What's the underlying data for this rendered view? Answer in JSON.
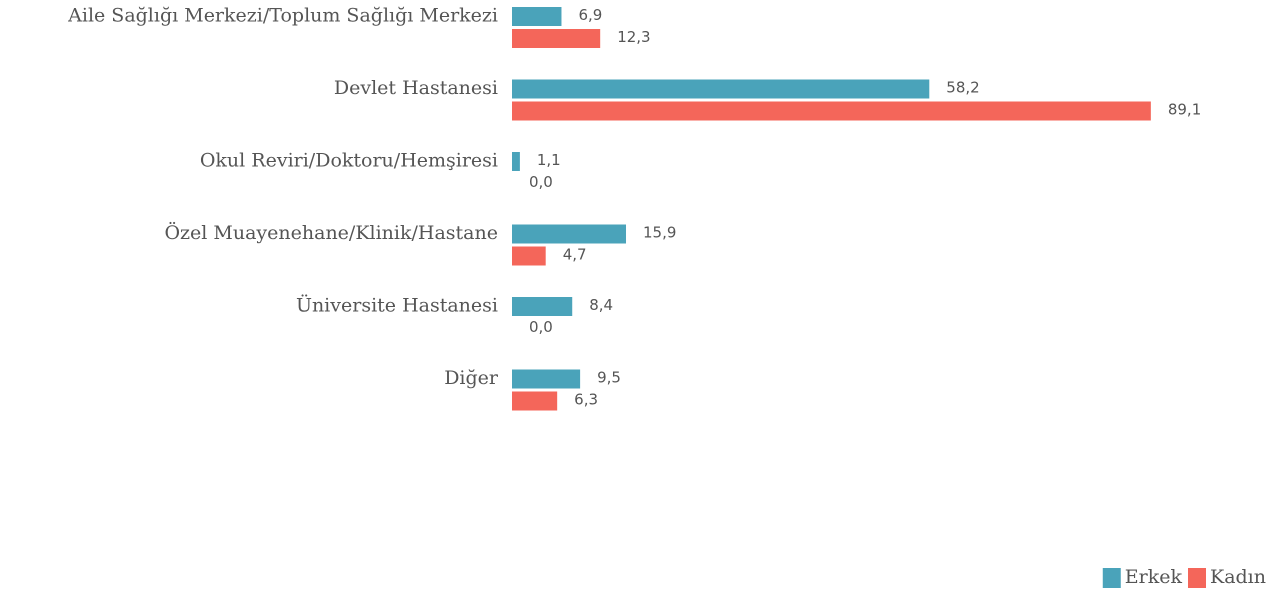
{
  "chart_data": {
    "type": "bar",
    "orientation": "horizontal",
    "categories": [
      "Aile Sağlığı Merkezi/Toplum Sağlığı Merkezi",
      "Devlet Hastanesi",
      "Okul Reviri/Doktoru/Hemşiresi",
      "Özel Muayenehane/Klinik/Hastane",
      "Üniversite Hastanesi",
      "Diğer"
    ],
    "series": [
      {
        "name": "Erkek",
        "color": "#4aa3ba",
        "values": [
          6.9,
          58.2,
          1.1,
          15.9,
          8.4,
          9.5
        ],
        "value_labels": [
          "6,9",
          "58,2",
          "1,1",
          "15,9",
          "8,4",
          "9,5"
        ]
      },
      {
        "name": "Kadın",
        "color": "#f4665a",
        "values": [
          12.3,
          89.1,
          0.0,
          4.7,
          0.0,
          6.3
        ],
        "value_labels": [
          "12,3",
          "89,1",
          "0,0",
          "4,7",
          "0,0",
          "6,3"
        ]
      }
    ],
    "legend": "bottom-right"
  }
}
